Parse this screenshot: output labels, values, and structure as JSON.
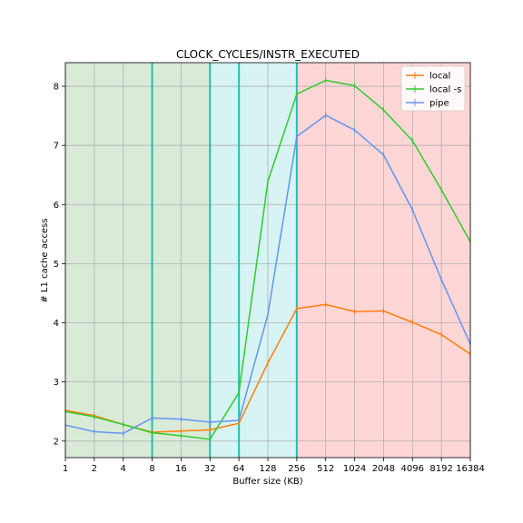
{
  "chart_data": {
    "type": "line",
    "title": "CLOCK_CYCLES/INSTR_EXECUTED",
    "xlabel": "Buffer size (KB)",
    "ylabel": "# L1 cache access",
    "x_scale": "log2",
    "x": [
      1,
      2,
      4,
      8,
      16,
      32,
      64,
      128,
      256,
      512,
      1024,
      2048,
      4096,
      8192,
      16384
    ],
    "x_tick_labels": [
      "1",
      "2",
      "4",
      "8",
      "16",
      "32",
      "64",
      "128",
      "256",
      "512",
      "1024",
      "2048",
      "4096",
      "8192",
      "16384"
    ],
    "xlim": [
      1,
      16384
    ],
    "ylim": [
      1.72,
      8.4
    ],
    "y_ticks": [
      2,
      3,
      4,
      5,
      6,
      7,
      8
    ],
    "grid": true,
    "legend_position": "top-right",
    "regions": [
      {
        "x_start": 1,
        "x_end": 32,
        "color": "#d9ead7"
      },
      {
        "x_start": 32,
        "x_end": 256,
        "color": "#d7f3f3"
      },
      {
        "x_start": 256,
        "x_end": 16384,
        "color": "#ffd6d6"
      }
    ],
    "vertical_lines": [
      8,
      32,
      64,
      256
    ],
    "vertical_line_color": "#20c0b0",
    "series": [
      {
        "name": "local",
        "color": "#ff7f0e",
        "values": [
          2.52,
          2.43,
          2.28,
          2.15,
          2.17,
          2.19,
          2.3,
          3.32,
          4.24,
          4.31,
          4.19,
          4.2,
          4.01,
          3.8,
          3.47
        ]
      },
      {
        "name": "local -s",
        "color": "#2ecc2e",
        "values": [
          2.5,
          2.41,
          2.28,
          2.14,
          2.09,
          2.03,
          2.82,
          6.39,
          7.87,
          8.1,
          8.01,
          7.6,
          7.08,
          6.25,
          5.37
        ]
      },
      {
        "name": "pipe",
        "color": "#6495ed",
        "values": [
          2.27,
          2.16,
          2.13,
          2.39,
          2.37,
          2.32,
          2.35,
          4.14,
          7.15,
          7.51,
          7.26,
          6.84,
          5.91,
          4.73,
          3.64
        ]
      }
    ]
  }
}
